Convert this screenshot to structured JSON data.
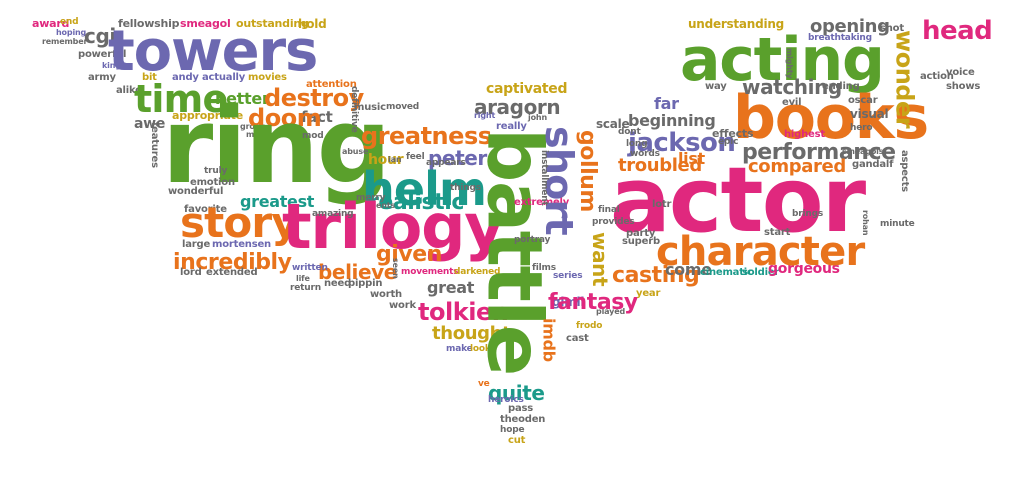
{
  "colors": {
    "green": "#5aa02c",
    "purple": "#6c68b0",
    "orange": "#e8731c",
    "pink": "#e0287e",
    "teal": "#1b9a8a",
    "olive": "#c8a418",
    "gray": "#6a6a6a"
  },
  "words": [
    {
      "text": "award",
      "color": "pink"
    },
    {
      "text": "end",
      "color": "olive"
    },
    {
      "text": "hoping",
      "color": "purple"
    },
    {
      "text": "remember",
      "color": "gray"
    },
    {
      "text": "fellowship",
      "color": "gray"
    },
    {
      "text": "smeagol",
      "color": "pink"
    },
    {
      "text": "outstanding",
      "color": "olive"
    },
    {
      "text": "hold",
      "color": "olive"
    },
    {
      "text": "cgi",
      "color": "gray"
    },
    {
      "text": "powerful",
      "color": "gray"
    },
    {
      "text": "king",
      "color": "purple"
    },
    {
      "text": "towers",
      "color": "purple"
    },
    {
      "text": "army",
      "color": "gray"
    },
    {
      "text": "bit",
      "color": "olive"
    },
    {
      "text": "andy",
      "color": "purple"
    },
    {
      "text": "actually",
      "color": "purple"
    },
    {
      "text": "movies",
      "color": "olive"
    },
    {
      "text": "attention",
      "color": "orange"
    },
    {
      "text": "alike",
      "color": "gray"
    },
    {
      "text": "time",
      "color": "green"
    },
    {
      "text": "better",
      "color": "green"
    },
    {
      "text": "destroy",
      "color": "orange"
    },
    {
      "text": "music",
      "color": "gray"
    },
    {
      "text": "moved",
      "color": "gray"
    },
    {
      "text": "appropriate",
      "color": "olive"
    },
    {
      "text": "awe",
      "color": "gray"
    },
    {
      "text": "group",
      "color": "gray"
    },
    {
      "text": "moment",
      "color": "gray"
    },
    {
      "text": "fact",
      "color": "gray"
    },
    {
      "text": "doom",
      "color": "orange"
    },
    {
      "text": "ring",
      "color": "green"
    },
    {
      "text": "greatness",
      "color": "orange"
    },
    {
      "text": "hour",
      "color": "olive"
    },
    {
      "text": "feel",
      "color": "gray"
    },
    {
      "text": "peter",
      "color": "purple"
    },
    {
      "text": "helm",
      "color": "teal"
    },
    {
      "text": "truly",
      "color": "gray"
    },
    {
      "text": "emotion",
      "color": "gray"
    },
    {
      "text": "favorite",
      "color": "gray"
    },
    {
      "text": "wonderful",
      "color": "gray"
    },
    {
      "text": "greatest",
      "color": "teal"
    },
    {
      "text": "realistic",
      "color": "teal"
    },
    {
      "text": "story",
      "color": "orange"
    },
    {
      "text": "trilogy",
      "color": "pink"
    },
    {
      "text": "large",
      "color": "gray"
    },
    {
      "text": "mortensen",
      "color": "purple"
    },
    {
      "text": "incredibly",
      "color": "orange"
    },
    {
      "text": "believe",
      "color": "orange"
    },
    {
      "text": "given",
      "color": "orange"
    },
    {
      "text": "great",
      "color": "gray"
    },
    {
      "text": "lord",
      "color": "gray"
    },
    {
      "text": "extended",
      "color": "gray"
    },
    {
      "text": "written",
      "color": "purple"
    },
    {
      "text": "life",
      "color": "gray"
    },
    {
      "text": "return",
      "color": "gray"
    },
    {
      "text": "need",
      "color": "gray"
    },
    {
      "text": "pippin",
      "color": "gray"
    },
    {
      "text": "worth",
      "color": "gray"
    },
    {
      "text": "work",
      "color": "gray"
    },
    {
      "text": "movements",
      "color": "pink"
    },
    {
      "text": "darkened",
      "color": "olive"
    },
    {
      "text": "tolkien",
      "color": "pink"
    },
    {
      "text": "thought",
      "color": "olive"
    },
    {
      "text": "make",
      "color": "purple"
    },
    {
      "text": "look",
      "color": "olive"
    },
    {
      "text": "ve",
      "color": "orange"
    },
    {
      "text": "quite",
      "color": "teal"
    },
    {
      "text": "heroics",
      "color": "purple"
    },
    {
      "text": "pass",
      "color": "gray"
    },
    {
      "text": "theoden",
      "color": "gray"
    },
    {
      "text": "hope",
      "color": "gray"
    },
    {
      "text": "cut",
      "color": "olive"
    },
    {
      "text": "battle",
      "color": "green"
    },
    {
      "text": "aragorn",
      "color": "gray"
    },
    {
      "text": "captivated",
      "color": "olive"
    },
    {
      "text": "right",
      "color": "purple"
    },
    {
      "text": "john",
      "color": "gray"
    },
    {
      "text": "really",
      "color": "purple"
    },
    {
      "text": "extremely",
      "color": "pink"
    },
    {
      "text": "portray",
      "color": "gray"
    },
    {
      "text": "films",
      "color": "gray"
    },
    {
      "text": "series",
      "color": "purple"
    },
    {
      "text": "gimli",
      "color": "purple"
    },
    {
      "text": "frodo",
      "color": "olive"
    },
    {
      "text": "cast",
      "color": "gray"
    },
    {
      "text": "played",
      "color": "gray"
    },
    {
      "text": "fantasy",
      "color": "pink"
    },
    {
      "text": "imdb",
      "color": "orange"
    },
    {
      "text": "short",
      "color": "purple"
    },
    {
      "text": "gollum",
      "color": "orange"
    },
    {
      "text": "want",
      "color": "olive"
    },
    {
      "text": "casting",
      "color": "orange"
    },
    {
      "text": "year",
      "color": "olive"
    },
    {
      "text": "jackson",
      "color": "purple"
    },
    {
      "text": "troubled",
      "color": "orange"
    },
    {
      "text": "list",
      "color": "orange"
    },
    {
      "text": "far",
      "color": "purple"
    },
    {
      "text": "beginning",
      "color": "gray"
    },
    {
      "text": "come",
      "color": "gray"
    },
    {
      "text": "cinematic",
      "color": "teal"
    },
    {
      "text": "soldier",
      "color": "teal"
    },
    {
      "text": "gorgeous",
      "color": "pink"
    },
    {
      "text": "acting",
      "color": "green"
    },
    {
      "text": "books",
      "color": "orange"
    },
    {
      "text": "actor",
      "color": "pink"
    },
    {
      "text": "character",
      "color": "orange"
    },
    {
      "text": "performance",
      "color": "gray"
    },
    {
      "text": "compared",
      "color": "orange"
    },
    {
      "text": "lotr",
      "color": "gray"
    },
    {
      "text": "start",
      "color": "gray"
    },
    {
      "text": "party",
      "color": "gray"
    },
    {
      "text": "superb",
      "color": "gray"
    },
    {
      "text": "head",
      "color": "pink"
    },
    {
      "text": "wonder",
      "color": "olive"
    },
    {
      "text": "opening",
      "color": "gray"
    },
    {
      "text": "understanding",
      "color": "olive"
    },
    {
      "text": "shot",
      "color": "gray"
    },
    {
      "text": "breathtaking",
      "color": "purple"
    },
    {
      "text": "action",
      "color": "gray"
    },
    {
      "text": "voice",
      "color": "gray"
    },
    {
      "text": "shows",
      "color": "gray"
    },
    {
      "text": "watching",
      "color": "gray"
    },
    {
      "text": "way",
      "color": "gray"
    },
    {
      "text": "evil",
      "color": "gray"
    },
    {
      "text": "ending",
      "color": "gray"
    },
    {
      "text": "oscar",
      "color": "gray"
    },
    {
      "text": "visual",
      "color": "gray"
    },
    {
      "text": "hero",
      "color": "gray"
    },
    {
      "text": "effects",
      "color": "gray"
    },
    {
      "text": "epic",
      "color": "gray"
    },
    {
      "text": "highest",
      "color": "pink"
    },
    {
      "text": "scale",
      "color": "gray"
    },
    {
      "text": "dont",
      "color": "gray"
    },
    {
      "text": "long",
      "color": "gray"
    },
    {
      "text": "words",
      "color": "gray"
    },
    {
      "text": "gandalf",
      "color": "gray"
    },
    {
      "text": "aspects",
      "color": "gray"
    },
    {
      "text": "brings",
      "color": "gray"
    },
    {
      "text": "minute",
      "color": "gray"
    },
    {
      "text": "final",
      "color": "gray"
    },
    {
      "text": "provides",
      "color": "gray"
    },
    {
      "text": "appears",
      "color": "gray"
    },
    {
      "text": "merry",
      "color": "gray"
    },
    {
      "text": "ents",
      "color": "gray"
    },
    {
      "text": "amazing",
      "color": "gray"
    },
    {
      "text": "features",
      "color": "gray"
    },
    {
      "text": "things",
      "color": "gray"
    },
    {
      "text": "installment",
      "color": "gray"
    },
    {
      "text": "definitive",
      "color": "gray"
    },
    {
      "text": "abuse",
      "color": "gray"
    },
    {
      "text": "ian",
      "color": "gray"
    },
    {
      "text": "smeagols",
      "color": "gray"
    },
    {
      "text": "mighty",
      "color": "gray"
    },
    {
      "text": "rohan",
      "color": "gray"
    },
    {
      "text": "mod",
      "color": "gray"
    },
    {
      "text": "seen",
      "color": "gray"
    }
  ]
}
